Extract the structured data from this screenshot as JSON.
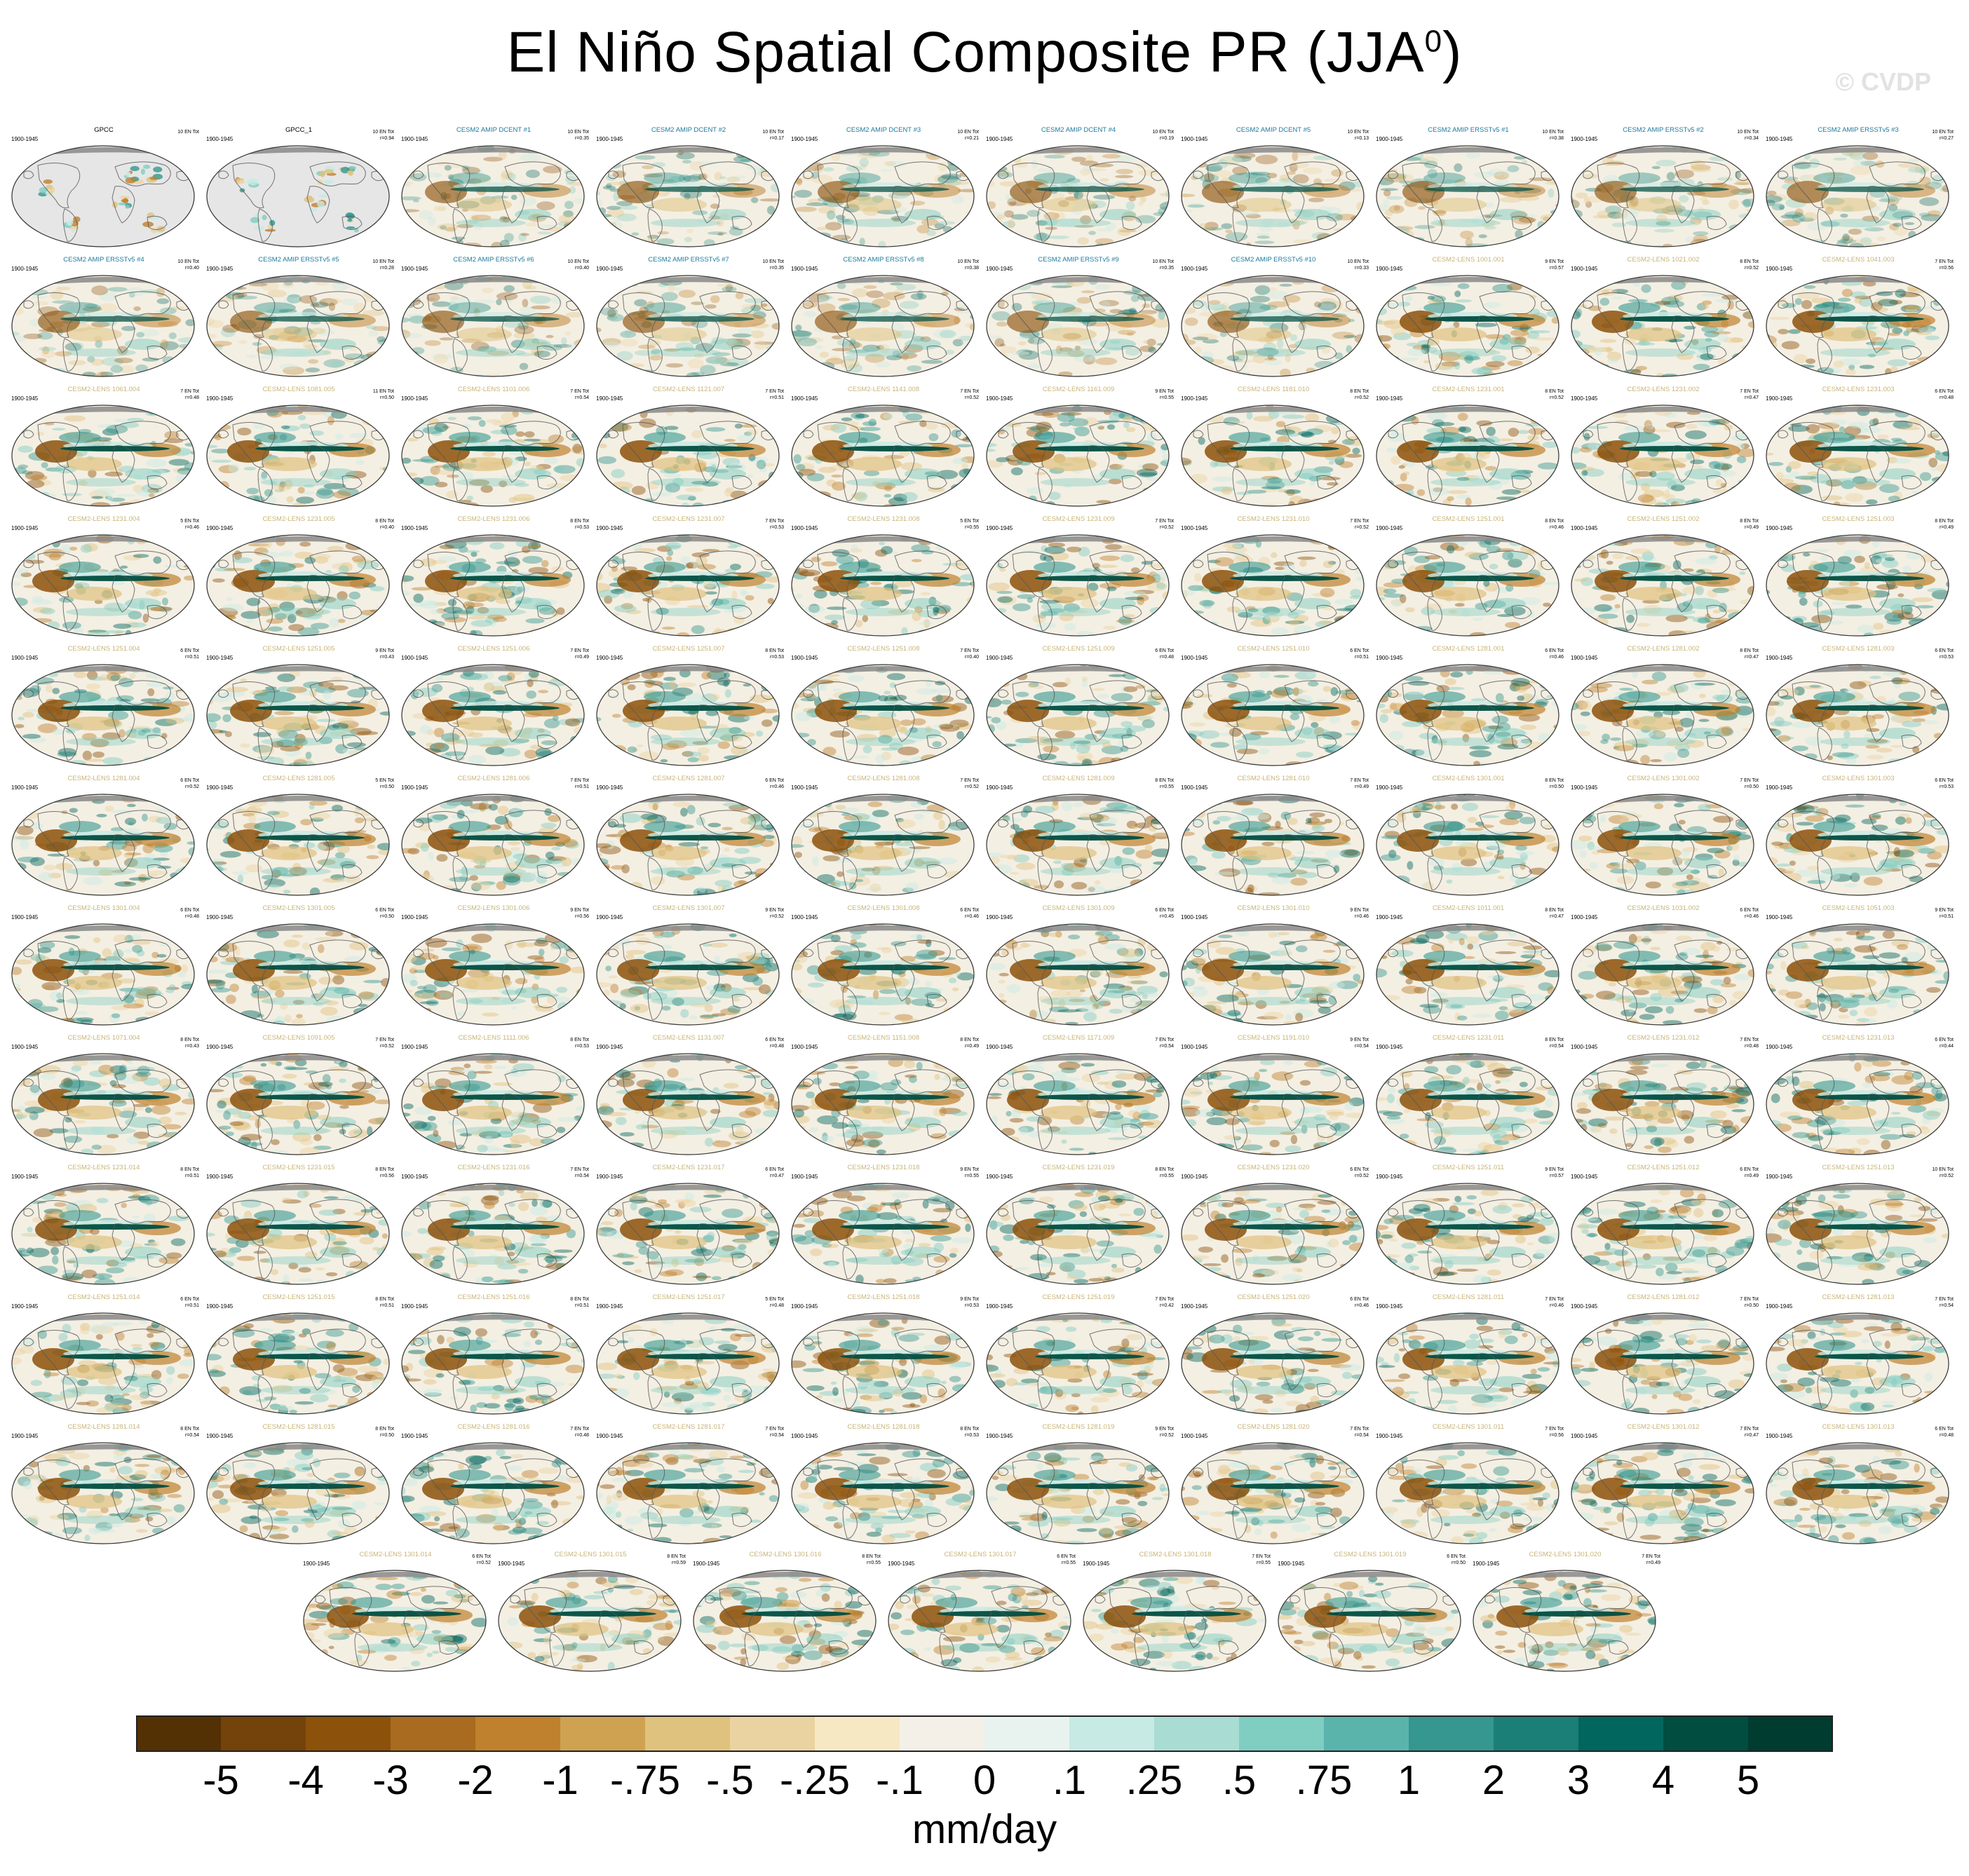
{
  "title": {
    "text": "El Niño Spatial Composite PR (JJA",
    "superscript": "0",
    "close": ")"
  },
  "watermark": "© CVDP",
  "colors": {
    "obs_title": "#000000",
    "amip_title": "#1f7a9c",
    "lens_title": "#c8b478",
    "land": "#888888",
    "missing": "#e6e6e6"
  },
  "panel_period": "1900-1945",
  "panel_stats_label": "EN Tot",
  "panels": [
    {
      "title": "GPCC",
      "group": "obs",
      "n": "10",
      "r": "",
      "pattern": 0
    },
    {
      "title": "GPCC_1",
      "group": "obs",
      "n": "10",
      "r": "r=0.94",
      "pattern": 0
    },
    {
      "title": "CESM2 AMIP DCENT #1",
      "group": "amip",
      "n": "10",
      "r": "r=0.35",
      "pattern": 1
    },
    {
      "title": "CESM2 AMIP DCENT #2",
      "group": "amip",
      "n": "10",
      "r": "r=0.17",
      "pattern": 2
    },
    {
      "title": "CESM2 AMIP DCENT #3",
      "group": "amip",
      "n": "10",
      "r": "r=0.21",
      "pattern": 3
    },
    {
      "title": "CESM2 AMIP DCENT #4",
      "group": "amip",
      "n": "10",
      "r": "r=0.19",
      "pattern": 1
    },
    {
      "title": "CESM2 AMIP DCENT #5",
      "group": "amip",
      "n": "10",
      "r": "r=0.13",
      "pattern": 2
    },
    {
      "title": "CESM2 AMIP ERSSTv5 #1",
      "group": "amip",
      "n": "10",
      "r": "r=0.38",
      "pattern": 3
    },
    {
      "title": "CESM2 AMIP ERSSTv5 #2",
      "group": "amip",
      "n": "10",
      "r": "r=0.34",
      "pattern": 1
    },
    {
      "title": "CESM2 AMIP ERSSTv5 #3",
      "group": "amip",
      "n": "10",
      "r": "r=0.27",
      "pattern": 2
    },
    {
      "title": "CESM2 AMIP ERSSTv5 #4",
      "group": "amip",
      "n": "10",
      "r": "r=0.40",
      "pattern": 3
    },
    {
      "title": "CESM2 AMIP ERSSTv5 #5",
      "group": "amip",
      "n": "10",
      "r": "r=0.28",
      "pattern": 1
    },
    {
      "title": "CESM2 AMIP ERSSTv5 #6",
      "group": "amip",
      "n": "10",
      "r": "r=0.40",
      "pattern": 2
    },
    {
      "title": "CESM2 AMIP ERSSTv5 #7",
      "group": "amip",
      "n": "10",
      "r": "r=0.35",
      "pattern": 3
    },
    {
      "title": "CESM2 AMIP ERSSTv5 #8",
      "group": "amip",
      "n": "10",
      "r": "r=0.38",
      "pattern": 1
    },
    {
      "title": "CESM2 AMIP ERSSTv5 #9",
      "group": "amip",
      "n": "10",
      "r": "r=0.35",
      "pattern": 2
    },
    {
      "title": "CESM2 AMIP ERSSTv5 #10",
      "group": "amip",
      "n": "10",
      "r": "r=0.33",
      "pattern": 3
    },
    {
      "title": "CESM2-LENS 1001.001",
      "group": "lens",
      "n": "9",
      "r": "r=0.57",
      "pattern": 4
    },
    {
      "title": "CESM2-LENS 1021.002",
      "group": "lens",
      "n": "8",
      "r": "r=0.52",
      "pattern": 5
    },
    {
      "title": "CESM2-LENS 1041.003",
      "group": "lens",
      "n": "7",
      "r": "r=0.56",
      "pattern": 6
    },
    {
      "title": "CESM2-LENS 1061.004",
      "group": "lens",
      "n": "7",
      "r": "r=0.48",
      "pattern": 4
    },
    {
      "title": "CESM2-LENS 1081.005",
      "group": "lens",
      "n": "11",
      "r": "r=0.50",
      "pattern": 5
    },
    {
      "title": "CESM2-LENS 1101.006",
      "group": "lens",
      "n": "7",
      "r": "r=0.54",
      "pattern": 6
    },
    {
      "title": "CESM2-LENS 1121.007",
      "group": "lens",
      "n": "7",
      "r": "r=0.51",
      "pattern": 4
    },
    {
      "title": "CESM2-LENS 1141.008",
      "group": "lens",
      "n": "7",
      "r": "r=0.52",
      "pattern": 5
    },
    {
      "title": "CESM2-LENS 1161.009",
      "group": "lens",
      "n": "9",
      "r": "r=0.55",
      "pattern": 6
    },
    {
      "title": "CESM2-LENS 1181.010",
      "group": "lens",
      "n": "8",
      "r": "r=0.52",
      "pattern": 4
    },
    {
      "title": "CESM2-LENS 1231.001",
      "group": "lens",
      "n": "8",
      "r": "r=0.52",
      "pattern": 5
    },
    {
      "title": "CESM2-LENS 1231.002",
      "group": "lens",
      "n": "7",
      "r": "r=0.47",
      "pattern": 6
    },
    {
      "title": "CESM2-LENS 1231.003",
      "group": "lens",
      "n": "6",
      "r": "r=0.48",
      "pattern": 4
    },
    {
      "title": "CESM2-LENS 1231.004",
      "group": "lens",
      "n": "5",
      "r": "r=0.46",
      "pattern": 5
    },
    {
      "title": "CESM2-LENS 1231.005",
      "group": "lens",
      "n": "8",
      "r": "r=0.40",
      "pattern": 6
    },
    {
      "title": "CESM2-LENS 1231.006",
      "group": "lens",
      "n": "8",
      "r": "r=0.53",
      "pattern": 4
    },
    {
      "title": "CESM2-LENS 1231.007",
      "group": "lens",
      "n": "7",
      "r": "r=0.53",
      "pattern": 5
    },
    {
      "title": "CESM2-LENS 1231.008",
      "group": "lens",
      "n": "5",
      "r": "r=0.55",
      "pattern": 6
    },
    {
      "title": "CESM2-LENS 1231.009",
      "group": "lens",
      "n": "7",
      "r": "r=0.52",
      "pattern": 4
    },
    {
      "title": "CESM2-LENS 1231.010",
      "group": "lens",
      "n": "7",
      "r": "r=0.52",
      "pattern": 5
    },
    {
      "title": "CESM2-LENS 1251.001",
      "group": "lens",
      "n": "8",
      "r": "r=0.46",
      "pattern": 6
    },
    {
      "title": "CESM2-LENS 1251.002",
      "group": "lens",
      "n": "8",
      "r": "r=0.49",
      "pattern": 4
    },
    {
      "title": "CESM2-LENS 1251.003",
      "group": "lens",
      "n": "8",
      "r": "r=0.49",
      "pattern": 5
    },
    {
      "title": "CESM2-LENS 1251.004",
      "group": "lens",
      "n": "6",
      "r": "r=0.51",
      "pattern": 6
    },
    {
      "title": "CESM2-LENS 1251.005",
      "group": "lens",
      "n": "9",
      "r": "r=0.43",
      "pattern": 4
    },
    {
      "title": "CESM2-LENS 1251.006",
      "group": "lens",
      "n": "7",
      "r": "r=0.49",
      "pattern": 5
    },
    {
      "title": "CESM2-LENS 1251.007",
      "group": "lens",
      "n": "8",
      "r": "r=0.53",
      "pattern": 6
    },
    {
      "title": "CESM2-LENS 1251.008",
      "group": "lens",
      "n": "7",
      "r": "r=0.40",
      "pattern": 4
    },
    {
      "title": "CESM2-LENS 1251.009",
      "group": "lens",
      "n": "6",
      "r": "r=0.48",
      "pattern": 5
    },
    {
      "title": "CESM2-LENS 1251.010",
      "group": "lens",
      "n": "6",
      "r": "r=0.51",
      "pattern": 6
    },
    {
      "title": "CESM2-LENS 1281.001",
      "group": "lens",
      "n": "6",
      "r": "r=0.46",
      "pattern": 4
    },
    {
      "title": "CESM2-LENS 1281.002",
      "group": "lens",
      "n": "8",
      "r": "r=0.47",
      "pattern": 5
    },
    {
      "title": "CESM2-LENS 1281.003",
      "group": "lens",
      "n": "6",
      "r": "r=0.53",
      "pattern": 6
    },
    {
      "title": "CESM2-LENS 1281.004",
      "group": "lens",
      "n": "6",
      "r": "r=0.52",
      "pattern": 4
    },
    {
      "title": "CESM2-LENS 1281.005",
      "group": "lens",
      "n": "5",
      "r": "r=0.50",
      "pattern": 5
    },
    {
      "title": "CESM2-LENS 1281.006",
      "group": "lens",
      "n": "7",
      "r": "r=0.51",
      "pattern": 6
    },
    {
      "title": "CESM2-LENS 1281.007",
      "group": "lens",
      "n": "6",
      "r": "r=0.46",
      "pattern": 4
    },
    {
      "title": "CESM2-LENS 1281.008",
      "group": "lens",
      "n": "7",
      "r": "r=0.52",
      "pattern": 5
    },
    {
      "title": "CESM2-LENS 1281.009",
      "group": "lens",
      "n": "8",
      "r": "r=0.55",
      "pattern": 6
    },
    {
      "title": "CESM2-LENS 1281.010",
      "group": "lens",
      "n": "7",
      "r": "r=0.49",
      "pattern": 4
    },
    {
      "title": "CESM2-LENS 1301.001",
      "group": "lens",
      "n": "8",
      "r": "r=0.50",
      "pattern": 5
    },
    {
      "title": "CESM2-LENS 1301.002",
      "group": "lens",
      "n": "7",
      "r": "r=0.50",
      "pattern": 6
    },
    {
      "title": "CESM2-LENS 1301.003",
      "group": "lens",
      "n": "6",
      "r": "r=0.53",
      "pattern": 4
    },
    {
      "title": "CESM2-LENS 1301.004",
      "group": "lens",
      "n": "6",
      "r": "r=0.48",
      "pattern": 5
    },
    {
      "title": "CESM2-LENS 1301.005",
      "group": "lens",
      "n": "6",
      "r": "r=0.50",
      "pattern": 6
    },
    {
      "title": "CESM2-LENS 1301.006",
      "group": "lens",
      "n": "9",
      "r": "r=0.56",
      "pattern": 4
    },
    {
      "title": "CESM2-LENS 1301.007",
      "group": "lens",
      "n": "9",
      "r": "r=0.52",
      "pattern": 5
    },
    {
      "title": "CESM2-LENS 1301.008",
      "group": "lens",
      "n": "6",
      "r": "r=0.46",
      "pattern": 6
    },
    {
      "title": "CESM2-LENS 1301.009",
      "group": "lens",
      "n": "6",
      "r": "r=0.45",
      "pattern": 4
    },
    {
      "title": "CESM2-LENS 1301.010",
      "group": "lens",
      "n": "9",
      "r": "r=0.46",
      "pattern": 5
    },
    {
      "title": "CESM2-LENS 1011.001",
      "group": "lens",
      "n": "8",
      "r": "r=0.47",
      "pattern": 6
    },
    {
      "title": "CESM2-LENS 1031.002",
      "group": "lens",
      "n": "6",
      "r": "r=0.46",
      "pattern": 4
    },
    {
      "title": "CESM2-LENS 1051.003",
      "group": "lens",
      "n": "9",
      "r": "r=0.51",
      "pattern": 5
    },
    {
      "title": "CESM2-LENS 1071.004",
      "group": "lens",
      "n": "8",
      "r": "r=0.43",
      "pattern": 6
    },
    {
      "title": "CESM2-LENS 1091.005",
      "group": "lens",
      "n": "7",
      "r": "r=0.52",
      "pattern": 4
    },
    {
      "title": "CESM2-LENS 1111.006",
      "group": "lens",
      "n": "8",
      "r": "r=0.53",
      "pattern": 5
    },
    {
      "title": "CESM2-LENS 1131.007",
      "group": "lens",
      "n": "6",
      "r": "r=0.48",
      "pattern": 6
    },
    {
      "title": "CESM2-LENS 1151.008",
      "group": "lens",
      "n": "8",
      "r": "r=0.49",
      "pattern": 4
    },
    {
      "title": "CESM2-LENS 1171.009",
      "group": "lens",
      "n": "7",
      "r": "r=0.54",
      "pattern": 5
    },
    {
      "title": "CESM2-LENS 1191.010",
      "group": "lens",
      "n": "9",
      "r": "r=0.54",
      "pattern": 6
    },
    {
      "title": "CESM2-LENS 1231.011",
      "group": "lens",
      "n": "8",
      "r": "r=0.54",
      "pattern": 4
    },
    {
      "title": "CESM2-LENS 1231.012",
      "group": "lens",
      "n": "7",
      "r": "r=0.48",
      "pattern": 5
    },
    {
      "title": "CESM2-LENS 1231.013",
      "group": "lens",
      "n": "6",
      "r": "r=0.44",
      "pattern": 6
    },
    {
      "title": "CESM2-LENS 1231.014",
      "group": "lens",
      "n": "8",
      "r": "r=0.51",
      "pattern": 4
    },
    {
      "title": "CESM2-LENS 1231.015",
      "group": "lens",
      "n": "8",
      "r": "r=0.56",
      "pattern": 5
    },
    {
      "title": "CESM2-LENS 1231.016",
      "group": "lens",
      "n": "7",
      "r": "r=0.54",
      "pattern": 6
    },
    {
      "title": "CESM2-LENS 1231.017",
      "group": "lens",
      "n": "6",
      "r": "r=0.47",
      "pattern": 4
    },
    {
      "title": "CESM2-LENS 1231.018",
      "group": "lens",
      "n": "9",
      "r": "r=0.55",
      "pattern": 5
    },
    {
      "title": "CESM2-LENS 1231.019",
      "group": "lens",
      "n": "8",
      "r": "r=0.55",
      "pattern": 6
    },
    {
      "title": "CESM2-LENS 1231.020",
      "group": "lens",
      "n": "6",
      "r": "r=0.52",
      "pattern": 4
    },
    {
      "title": "CESM2-LENS 1251.011",
      "group": "lens",
      "n": "9",
      "r": "r=0.57",
      "pattern": 5
    },
    {
      "title": "CESM2-LENS 1251.012",
      "group": "lens",
      "n": "6",
      "r": "r=0.49",
      "pattern": 6
    },
    {
      "title": "CESM2-LENS 1251.013",
      "group": "lens",
      "n": "10",
      "r": "r=0.52",
      "pattern": 4
    },
    {
      "title": "CESM2-LENS 1251.014",
      "group": "lens",
      "n": "6",
      "r": "r=0.51",
      "pattern": 5
    },
    {
      "title": "CESM2-LENS 1251.015",
      "group": "lens",
      "n": "8",
      "r": "r=0.51",
      "pattern": 6
    },
    {
      "title": "CESM2-LENS 1251.016",
      "group": "lens",
      "n": "8",
      "r": "r=0.51",
      "pattern": 4
    },
    {
      "title": "CESM2-LENS 1251.017",
      "group": "lens",
      "n": "5",
      "r": "r=0.48",
      "pattern": 5
    },
    {
      "title": "CESM2-LENS 1251.018",
      "group": "lens",
      "n": "9",
      "r": "r=0.53",
      "pattern": 6
    },
    {
      "title": "CESM2-LENS 1251.019",
      "group": "lens",
      "n": "7",
      "r": "r=0.42",
      "pattern": 4
    },
    {
      "title": "CESM2-LENS 1251.020",
      "group": "lens",
      "n": "6",
      "r": "r=0.46",
      "pattern": 5
    },
    {
      "title": "CESM2-LENS 1281.011",
      "group": "lens",
      "n": "7",
      "r": "r=0.46",
      "pattern": 6
    },
    {
      "title": "CESM2-LENS 1281.012",
      "group": "lens",
      "n": "7",
      "r": "r=0.50",
      "pattern": 4
    },
    {
      "title": "CESM2-LENS 1281.013",
      "group": "lens",
      "n": "7",
      "r": "r=0.54",
      "pattern": 5
    },
    {
      "title": "CESM2-LENS 1281.014",
      "group": "lens",
      "n": "8",
      "r": "r=0.54",
      "pattern": 6
    },
    {
      "title": "CESM2-LENS 1281.015",
      "group": "lens",
      "n": "8",
      "r": "r=0.50",
      "pattern": 4
    },
    {
      "title": "CESM2-LENS 1281.016",
      "group": "lens",
      "n": "7",
      "r": "r=0.48",
      "pattern": 5
    },
    {
      "title": "CESM2-LENS 1281.017",
      "group": "lens",
      "n": "7",
      "r": "r=0.54",
      "pattern": 6
    },
    {
      "title": "CESM2-LENS 1281.018",
      "group": "lens",
      "n": "8",
      "r": "r=0.53",
      "pattern": 4
    },
    {
      "title": "CESM2-LENS 1281.019",
      "group": "lens",
      "n": "9",
      "r": "r=0.52",
      "pattern": 5
    },
    {
      "title": "CESM2-LENS 1281.020",
      "group": "lens",
      "n": "7",
      "r": "r=0.54",
      "pattern": 6
    },
    {
      "title": "CESM2-LENS 1301.011",
      "group": "lens",
      "n": "7",
      "r": "r=0.56",
      "pattern": 4
    },
    {
      "title": "CESM2-LENS 1301.012",
      "group": "lens",
      "n": "7",
      "r": "r=0.47",
      "pattern": 5
    },
    {
      "title": "CESM2-LENS 1301.013",
      "group": "lens",
      "n": "6",
      "r": "r=0.48",
      "pattern": 6
    },
    {
      "title": "CESM2-LENS 1301.014",
      "group": "lens",
      "n": "6",
      "r": "r=0.52",
      "pattern": 4
    },
    {
      "title": "CESM2-LENS 1301.015",
      "group": "lens",
      "n": "8",
      "r": "r=0.59",
      "pattern": 5
    },
    {
      "title": "CESM2-LENS 1301.016",
      "group": "lens",
      "n": "8",
      "r": "r=0.55",
      "pattern": 6
    },
    {
      "title": "CESM2-LENS 1301.017",
      "group": "lens",
      "n": "6",
      "r": "r=0.55",
      "pattern": 4
    },
    {
      "title": "CESM2-LENS 1301.018",
      "group": "lens",
      "n": "7",
      "r": "r=0.55",
      "pattern": 5
    },
    {
      "title": "CESM2-LENS 1301.019",
      "group": "lens",
      "n": "6",
      "r": "r=0.50",
      "pattern": 6
    },
    {
      "title": "CESM2-LENS 1301.020",
      "group": "lens",
      "n": "7",
      "r": "r=0.49",
      "pattern": 4
    }
  ],
  "colorbar": {
    "colors": [
      "#543005",
      "#74420b",
      "#8c510a",
      "#a86b1f",
      "#bf812d",
      "#cfa252",
      "#dfc27d",
      "#ead3a0",
      "#f6e8c3",
      "#f4f0e8",
      "#e8f3f0",
      "#c7eae5",
      "#a9ddd4",
      "#80cdc1",
      "#5ab4ac",
      "#35978f",
      "#1c7f77",
      "#01665e",
      "#014d40",
      "#003c30"
    ],
    "labels": [
      "-5",
      "-4",
      "-3",
      "-2",
      "-1",
      "-.75",
      "-.5",
      "-.25",
      "-.1",
      "0",
      ".1",
      ".25",
      ".5",
      ".75",
      "1",
      "2",
      "3",
      "4",
      "5"
    ],
    "units": "mm/day"
  }
}
